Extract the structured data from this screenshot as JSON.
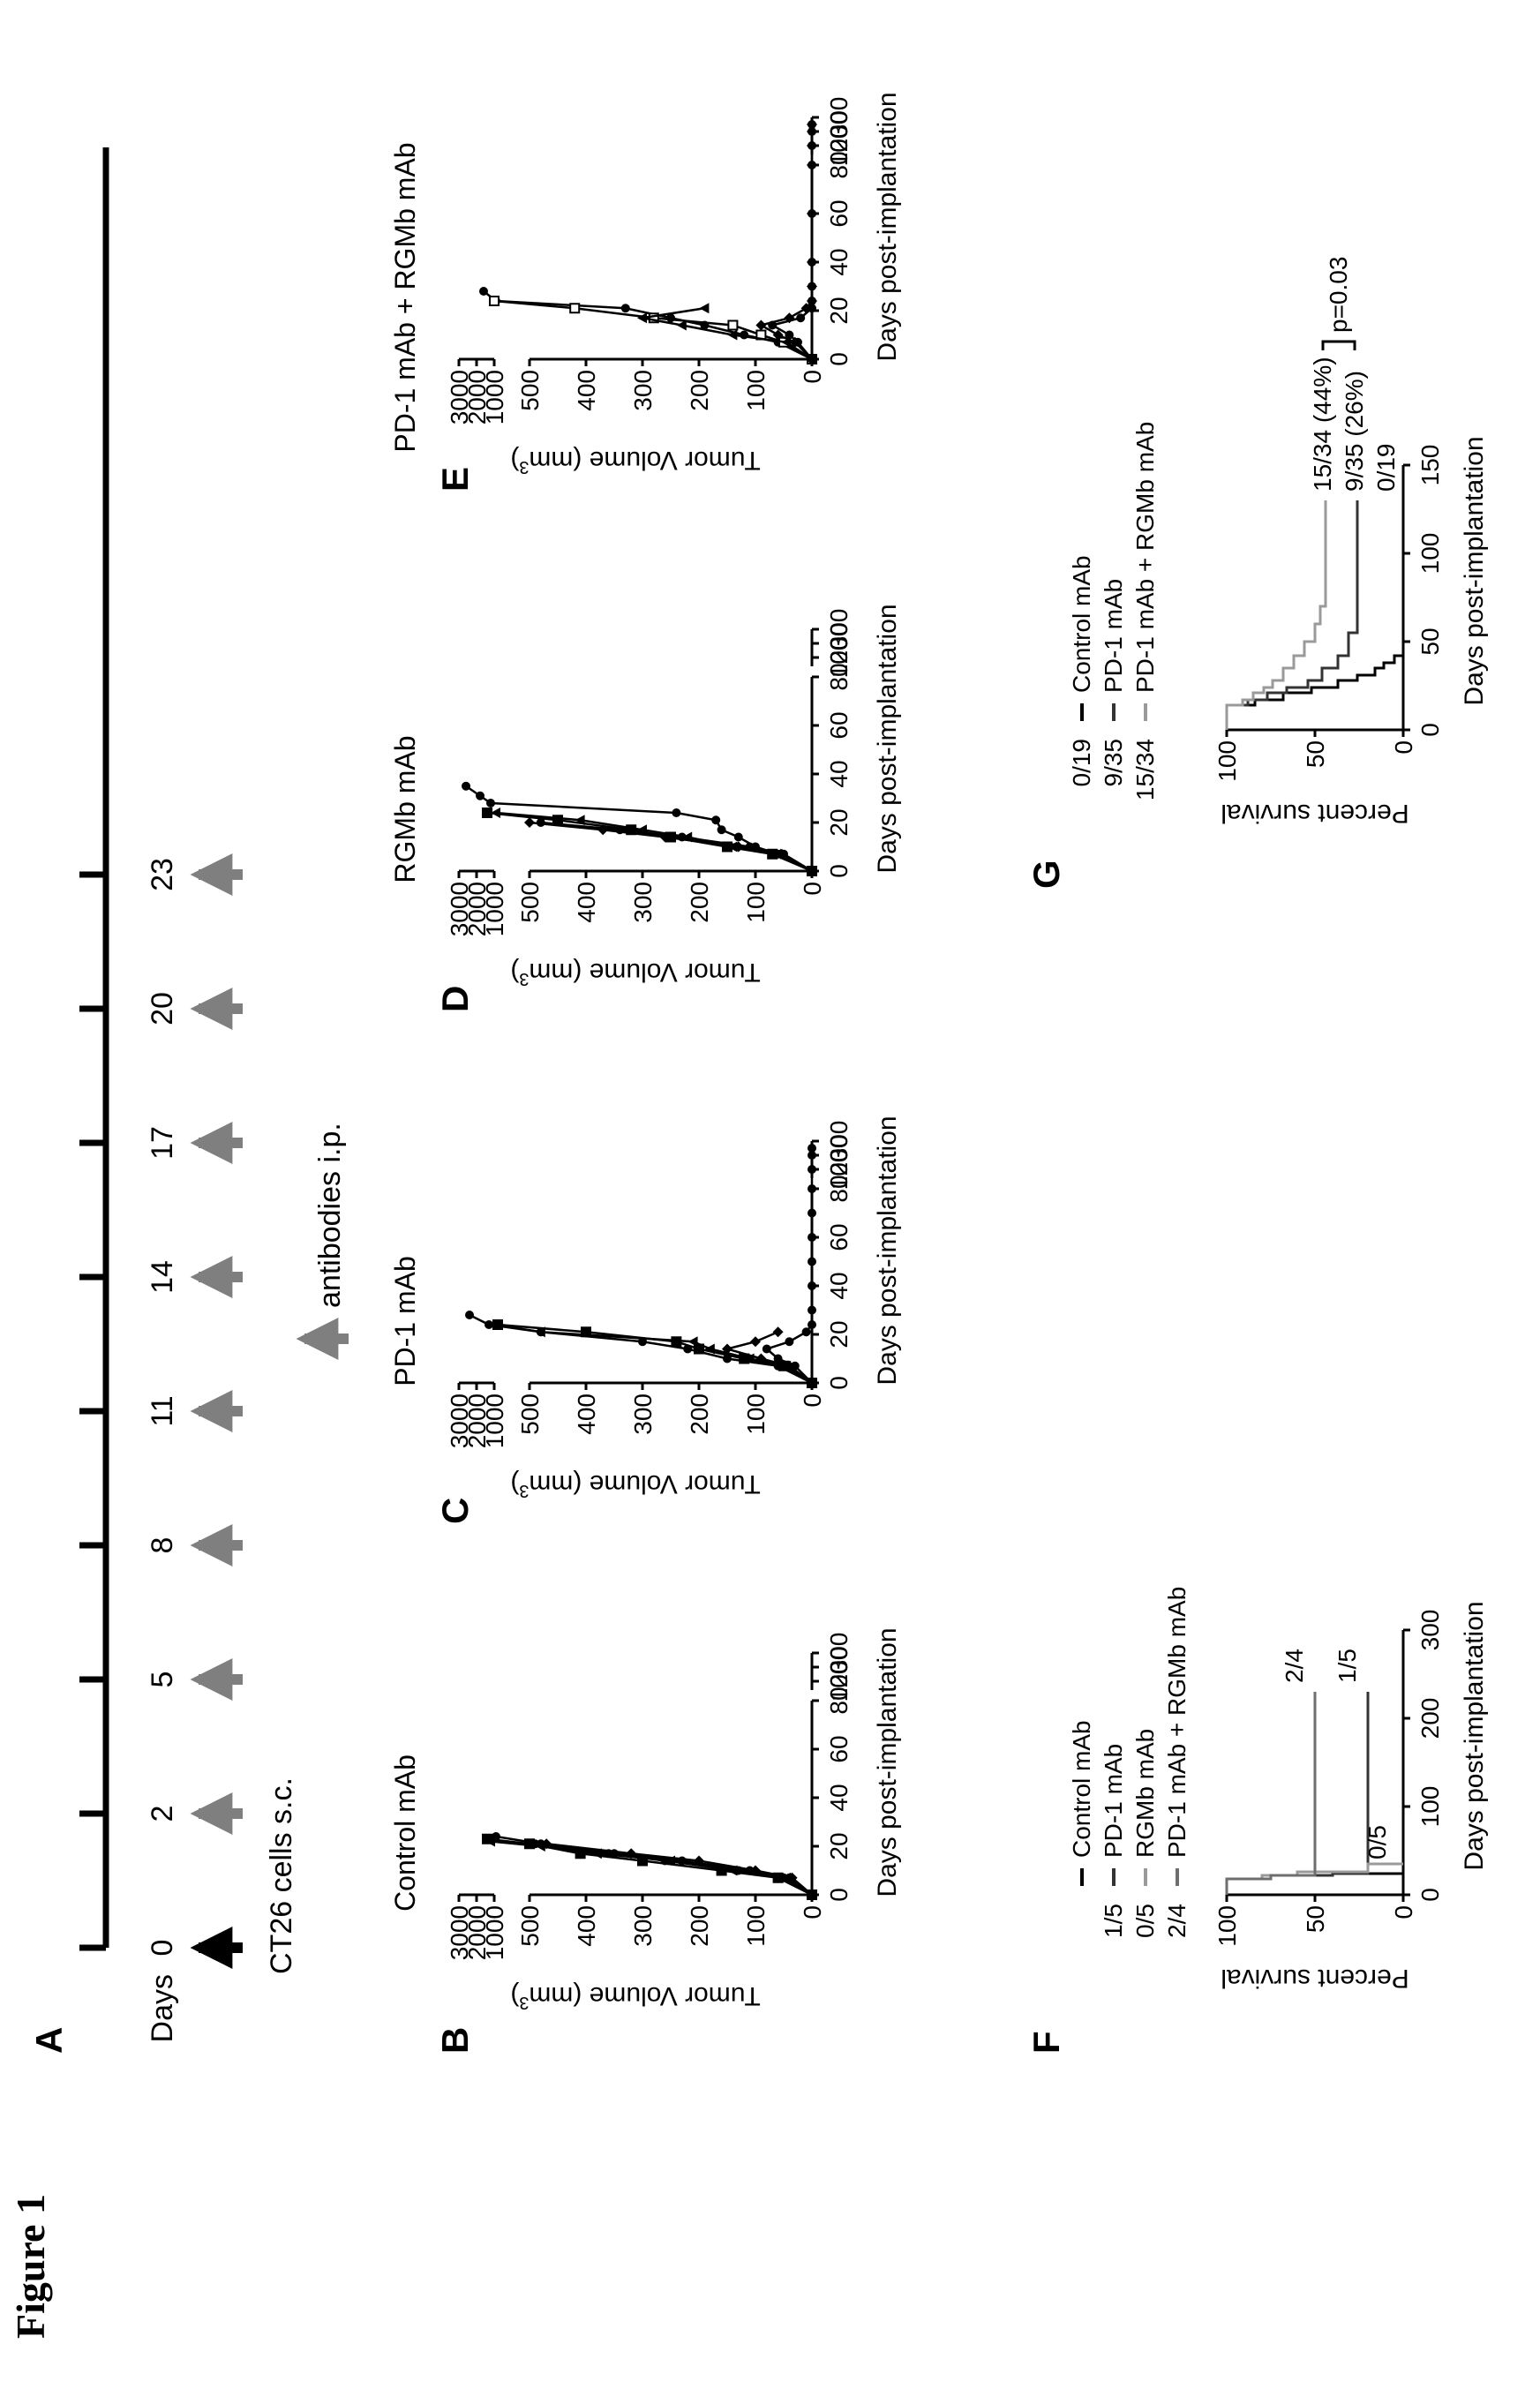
{
  "figure_title": "Figure 1",
  "panel_letters": {
    "A": "A",
    "B": "B",
    "C": "C",
    "D": "D",
    "E": "E",
    "F": "F",
    "G": "G"
  },
  "schedule": {
    "days_label": "Days",
    "timepoints": [
      "0",
      "2",
      "5",
      "8",
      "11",
      "14",
      "17",
      "20",
      "23"
    ],
    "implant_label": "CT26 cells s.c.",
    "antibody_label": "antibodies i.p.",
    "colors": {
      "implant_arrow": "#000000",
      "antibody_arrow": "#7f7f7f"
    }
  },
  "axes_text": {
    "tumor_ylabel": "Tumor Volume (mm",
    "tumor_ylabel_sup": "3",
    "tumor_ylabel_close": ")",
    "tumor_xlabel": "Days post-implantation",
    "tumor_upper_ticks": [
      "3000",
      "2000",
      "1000"
    ],
    "tumor_lower_ticks": [
      "500",
      "400",
      "300",
      "200",
      "100",
      "0"
    ],
    "tumor_x_ticks": [
      "0",
      "20",
      "40",
      "60",
      "80",
      "100",
      "200",
      "300"
    ],
    "survival_ylabel": "Percent survival",
    "survival_xlabel": "Days post-implantation",
    "survival_y_ticks": [
      "100",
      "50",
      "0"
    ]
  },
  "chart_data": [
    {
      "type": "line",
      "panel": "B",
      "title": "Control mAb",
      "xlabel": "Days post-implantation",
      "ylabel": "Tumor Volume (mm3)",
      "x_scale": "broken: 0-80 linear, then 100, 200, 300",
      "y_scale": "broken: 0-500 linear, 1000-3000 compressed",
      "ylim": [
        0,
        3000
      ],
      "series": [
        {
          "x": [
            0,
            7,
            10,
            14,
            17,
            21,
            24
          ],
          "y": [
            0,
            40,
            110,
            230,
            350,
            480,
            900
          ]
        },
        {
          "x": [
            0,
            7,
            10,
            14,
            17,
            21,
            23
          ],
          "y": [
            0,
            60,
            160,
            300,
            410,
            500,
            1400
          ]
        },
        {
          "x": [
            0,
            7,
            10,
            14,
            17,
            20,
            22
          ],
          "y": [
            0,
            45,
            140,
            250,
            380,
            480,
            1200
          ]
        },
        {
          "x": [
            0,
            7,
            10,
            14,
            17,
            21
          ],
          "y": [
            0,
            35,
            100,
            200,
            320,
            470
          ]
        },
        {
          "x": [
            0,
            7,
            10,
            14,
            17,
            21
          ],
          "y": [
            0,
            50,
            130,
            260,
            360,
            490
          ]
        }
      ]
    },
    {
      "type": "line",
      "panel": "C",
      "title": "PD-1 mAb",
      "xlabel": "Days post-implantation",
      "ylabel": "Tumor Volume (mm3)",
      "ylim": [
        0,
        3000
      ],
      "series": [
        {
          "x": [
            0,
            7,
            10,
            14,
            17,
            21,
            24,
            28
          ],
          "y": [
            0,
            60,
            150,
            220,
            300,
            480,
            1300,
            2400
          ]
        },
        {
          "x": [
            0,
            7,
            10,
            14,
            17,
            21,
            24
          ],
          "y": [
            0,
            50,
            120,
            200,
            240,
            400,
            800
          ]
        },
        {
          "x": [
            0,
            7,
            10,
            14,
            17,
            21,
            24
          ],
          "y": [
            0,
            45,
            110,
            180,
            210,
            480,
            1000
          ]
        },
        {
          "x": [
            0,
            7,
            10,
            14,
            17,
            21
          ],
          "y": [
            0,
            40,
            90,
            150,
            100,
            60
          ]
        },
        {
          "x": [
            0,
            7,
            10,
            14,
            17,
            21,
            24,
            30,
            40,
            50,
            60,
            70,
            80,
            100,
            200,
            250
          ],
          "y": [
            0,
            30,
            60,
            80,
            40,
            10,
            0,
            0,
            0,
            0,
            0,
            0,
            0,
            0,
            0,
            0
          ]
        }
      ]
    },
    {
      "type": "line",
      "panel": "D",
      "title": "RGMb mAb",
      "xlabel": "Days post-implantation",
      "ylabel": "Tumor Volume (mm3)",
      "ylim": [
        0,
        3000
      ],
      "series": [
        {
          "x": [
            0,
            7,
            10,
            14,
            17,
            21,
            24,
            28,
            31,
            35
          ],
          "y": [
            0,
            60,
            100,
            130,
            160,
            170,
            240,
            1200,
            1800,
            2600
          ]
        },
        {
          "x": [
            0,
            7,
            10,
            14,
            17,
            21,
            24
          ],
          "y": [
            0,
            70,
            150,
            250,
            320,
            450,
            1400
          ]
        },
        {
          "x": [
            0,
            7,
            10,
            14,
            17,
            21,
            24
          ],
          "y": [
            0,
            60,
            140,
            220,
            300,
            410,
            900
          ]
        },
        {
          "x": [
            0,
            7,
            10,
            14,
            17,
            20
          ],
          "y": [
            0,
            55,
            130,
            260,
            370,
            500
          ]
        },
        {
          "x": [
            0,
            7,
            10,
            14,
            17,
            20
          ],
          "y": [
            0,
            50,
            110,
            230,
            340,
            480
          ]
        }
      ]
    },
    {
      "type": "line",
      "panel": "E",
      "title": "PD-1 mAb + RGMb mAb",
      "xlabel": "Days post-implantation",
      "ylabel": "Tumor Volume (mm3)",
      "ylim": [
        0,
        3000
      ],
      "series": [
        {
          "x": [
            0,
            7,
            10,
            14,
            17,
            21,
            24,
            28
          ],
          "y": [
            0,
            60,
            120,
            190,
            250,
            330,
            900,
            1600
          ]
        },
        {
          "x": [
            0,
            7,
            10,
            14,
            17,
            21,
            24
          ],
          "y": [
            0,
            50,
            90,
            140,
            280,
            420,
            1000
          ]
        },
        {
          "x": [
            0,
            7,
            10,
            14,
            17,
            21
          ],
          "y": [
            0,
            45,
            140,
            230,
            300,
            190
          ]
        },
        {
          "x": [
            0,
            7,
            10,
            14,
            17,
            21,
            24,
            30,
            40,
            60,
            80,
            100,
            200,
            250
          ],
          "y": [
            0,
            30,
            60,
            90,
            40,
            10,
            0,
            0,
            0,
            0,
            0,
            0,
            0,
            0
          ]
        },
        {
          "x": [
            0,
            7,
            10,
            14,
            17,
            21,
            24,
            30,
            40,
            60,
            80,
            100,
            200,
            250
          ],
          "y": [
            0,
            25,
            40,
            70,
            20,
            0,
            0,
            0,
            0,
            0,
            0,
            0,
            0,
            0
          ]
        }
      ]
    },
    {
      "type": "line",
      "panel": "F",
      "xlabel": "Days post-implantation",
      "ylabel": "Percent survival",
      "xlim": [
        0,
        300
      ],
      "ylim": [
        0,
        100
      ],
      "x_ticks": [
        0,
        100,
        200,
        300
      ],
      "series": [
        {
          "name": "Control mAb",
          "x": [
            0,
            18,
            22,
            24
          ],
          "y": [
            100,
            80,
            40,
            0
          ],
          "color": "#000000"
        },
        {
          "name": "PD-1 mAb",
          "x": [
            0,
            18,
            22,
            24,
            230
          ],
          "y": [
            100,
            80,
            40,
            20,
            20
          ],
          "color": "#333333"
        },
        {
          "name": "RGMb mAb",
          "x": [
            0,
            18,
            22,
            26,
            35
          ],
          "y": [
            100,
            80,
            60,
            20,
            0
          ],
          "color": "#9a9a9a"
        },
        {
          "name": "PD-1 mAb + RGMb mAb",
          "x": [
            0,
            18,
            22,
            230
          ],
          "y": [
            100,
            75,
            50,
            50
          ],
          "color": "#6e6e6e"
        }
      ],
      "legend_counts": [
        "",
        "1/5",
        "0/5",
        "2/4"
      ],
      "annotations": [
        "2/4",
        "1/5",
        "0/5"
      ]
    },
    {
      "type": "line",
      "panel": "G",
      "xlabel": "Days post-implantation",
      "ylabel": "Percent survival",
      "xlim": [
        0,
        150
      ],
      "ylim": [
        0,
        100
      ],
      "x_ticks": [
        0,
        50,
        100,
        150
      ],
      "series": [
        {
          "name": "Control mAb",
          "x": [
            0,
            14,
            17,
            21,
            24,
            28,
            31,
            35,
            38,
            42
          ],
          "y": [
            100,
            84,
            68,
            52,
            37,
            26,
            16,
            11,
            5,
            0
          ],
          "color": "#000000"
        },
        {
          "name": "PD-1 mAb",
          "x": [
            0,
            14,
            17,
            21,
            24,
            28,
            35,
            42,
            55,
            130
          ],
          "y": [
            100,
            88,
            77,
            66,
            54,
            46,
            37,
            31,
            26,
            26
          ],
          "color": "#333333"
        },
        {
          "name": "PD-1 mAb + RGMb mAb",
          "x": [
            0,
            14,
            17,
            21,
            24,
            28,
            35,
            42,
            50,
            60,
            70,
            130
          ],
          "y": [
            100,
            91,
            85,
            79,
            74,
            68,
            62,
            56,
            50,
            47,
            44,
            44
          ],
          "color": "#9a9a9a"
        }
      ],
      "legend_counts": [
        "0/19",
        "9/35",
        "15/34"
      ],
      "annotations": [
        "15/34 (44%)",
        "9/35 (26%)",
        "0/19"
      ],
      "pvalue": "p=0.03"
    }
  ]
}
